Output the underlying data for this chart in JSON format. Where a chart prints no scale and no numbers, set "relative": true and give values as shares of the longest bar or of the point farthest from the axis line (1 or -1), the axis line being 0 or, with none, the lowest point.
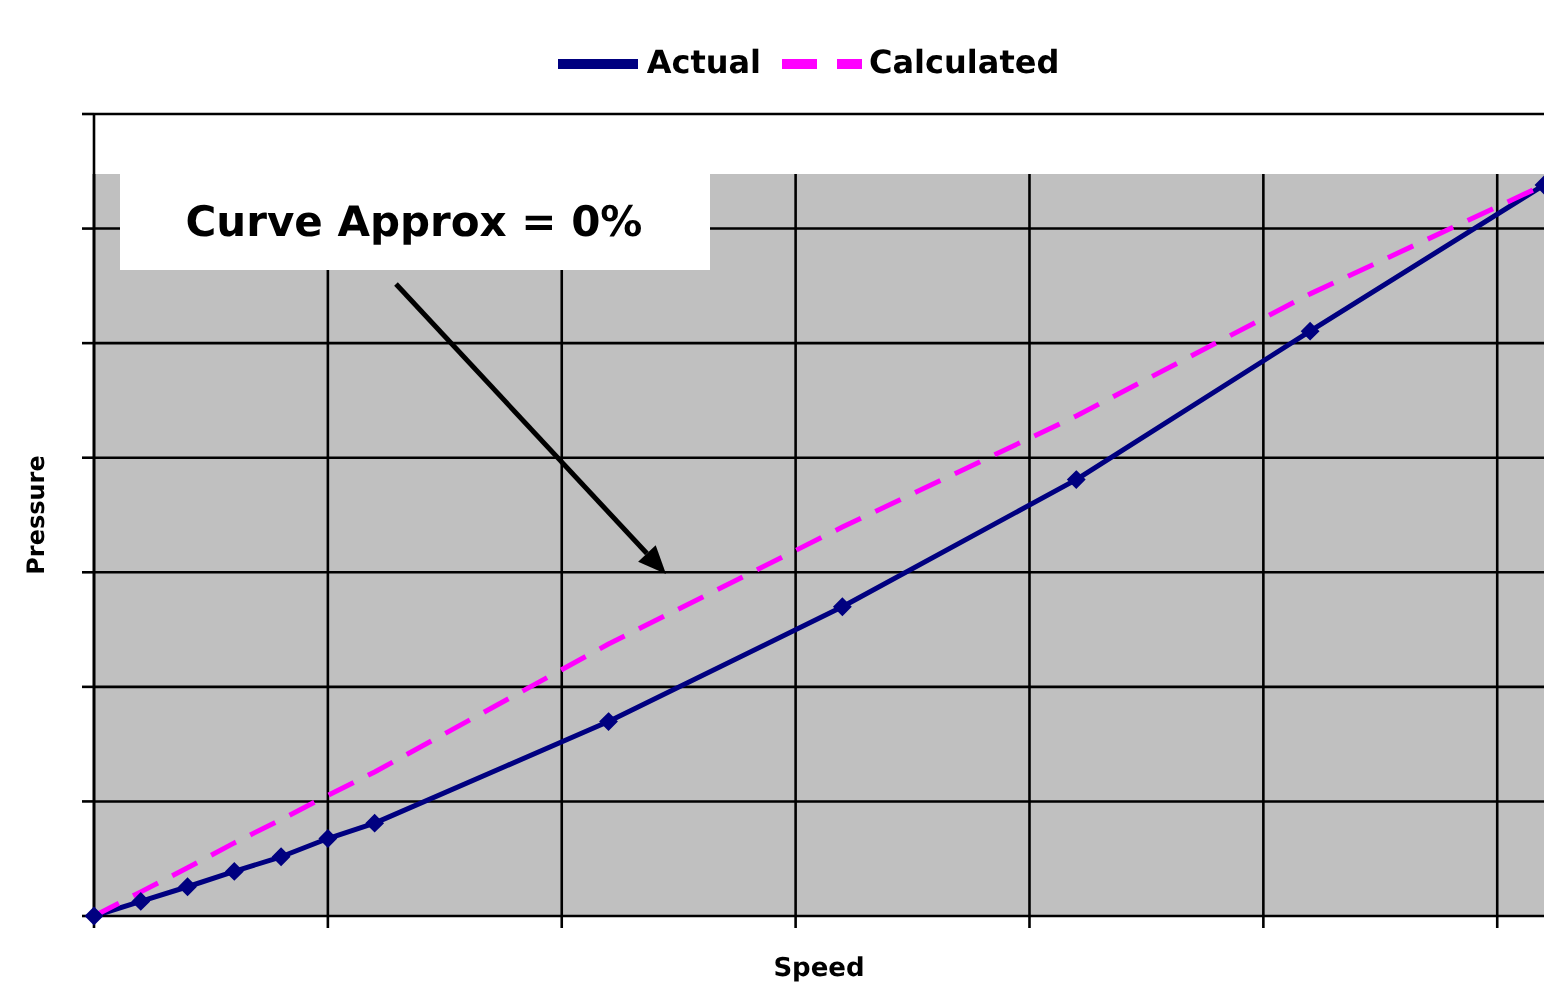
{
  "chart_data": {
    "type": "line",
    "relative": true,
    "xlabel": "Speed",
    "ylabel": "Pressure",
    "categories": [
      null,
      null,
      null,
      null,
      null,
      null,
      null,
      null,
      null,
      null,
      null,
      null,
      null,
      null,
      null,
      null,
      null,
      null,
      null,
      null,
      null,
      null,
      null,
      null,
      null,
      null,
      null,
      null,
      null,
      null,
      null,
      null
    ],
    "grid": true,
    "legend": "top",
    "annotations": [
      "Curve Approx = 0%"
    ],
    "series": [
      {
        "name": "Actual",
        "color": "#000080",
        "marker": "diamond",
        "line_style": "solid",
        "values": [
          0,
          0.02,
          0.04,
          0.061,
          0.081,
          0.106,
          0.127,
          null,
          null,
          null,
          null,
          0.266,
          null,
          null,
          null,
          null,
          0.423,
          null,
          null,
          null,
          null,
          0.597,
          null,
          null,
          null,
          null,
          0.8,
          null,
          null,
          null,
          null,
          1
        ]
      },
      {
        "name": "Calculated",
        "color": "#ff00ff",
        "marker": "none",
        "line_style": "dashed",
        "values": [
          0,
          0.033,
          0.066,
          0.1,
          0.132,
          0.165,
          0.197,
          null,
          null,
          null,
          null,
          0.372,
          null,
          null,
          null,
          null,
          0.532,
          null,
          null,
          null,
          null,
          0.684,
          null,
          null,
          null,
          null,
          0.851,
          null,
          null,
          null,
          null,
          1
        ]
      }
    ]
  }
}
